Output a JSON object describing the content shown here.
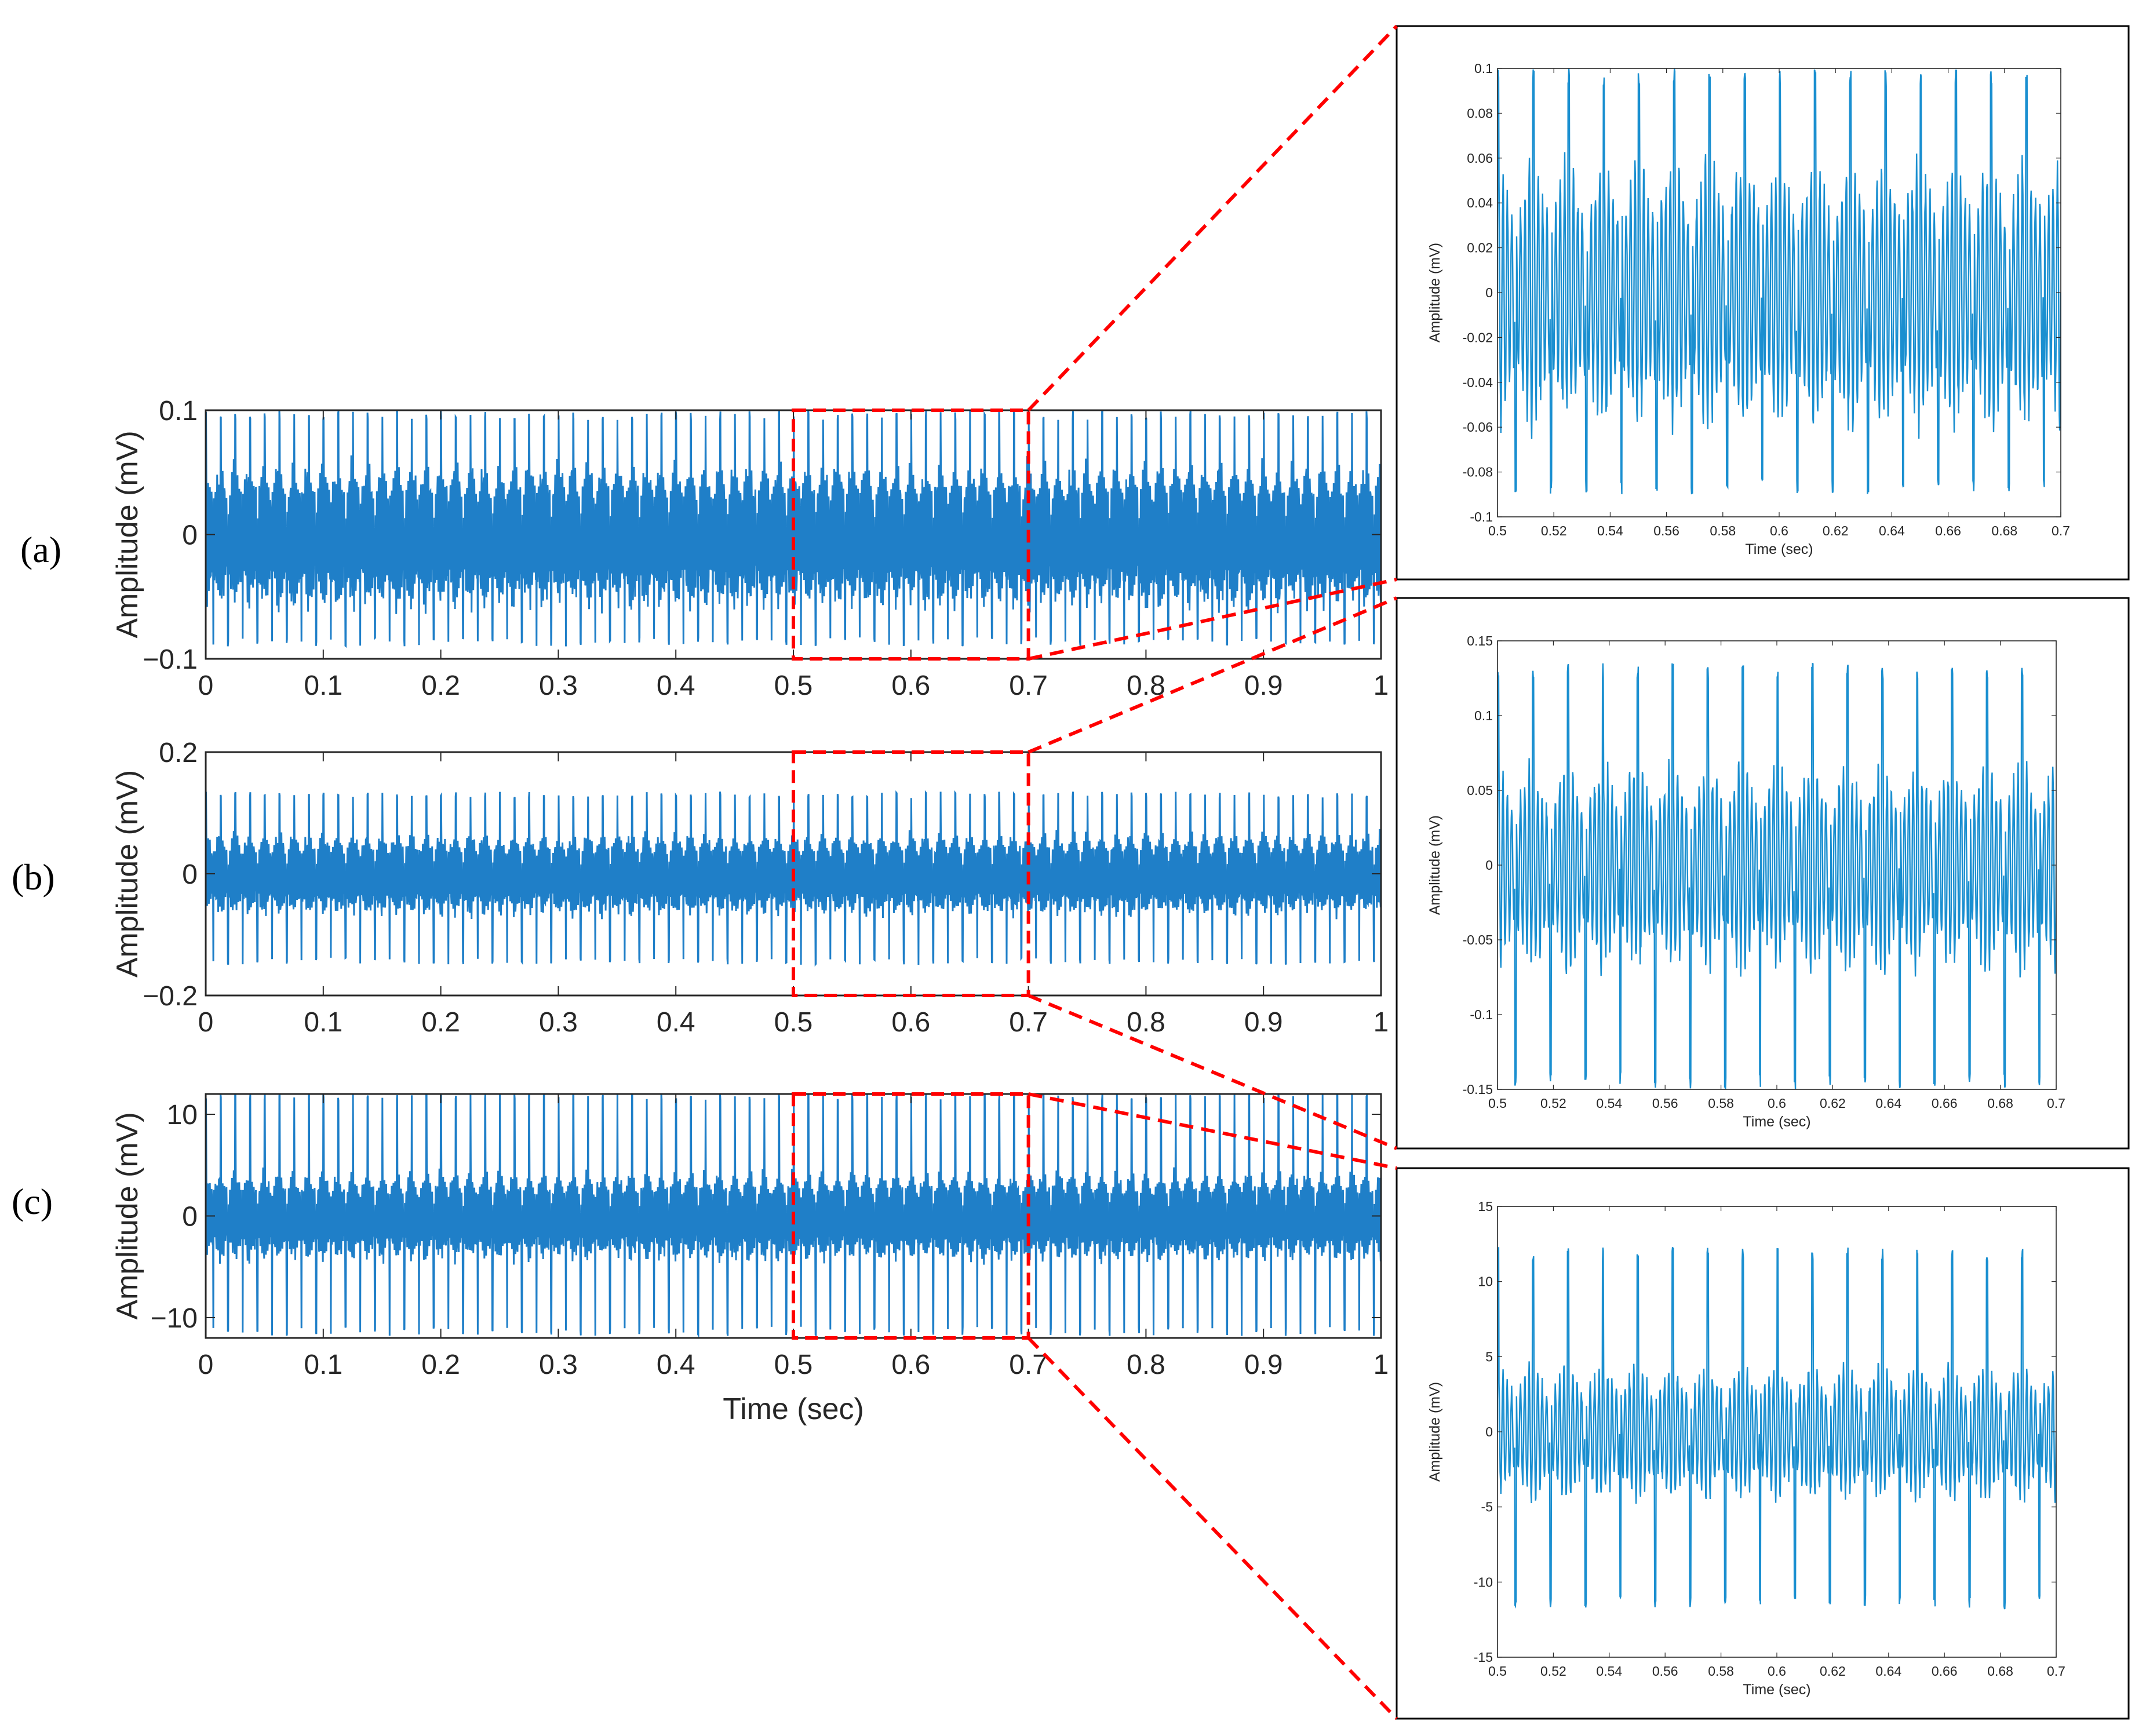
{
  "chart_data": [
    {
      "id": "a",
      "panel_label": "(a)",
      "type": "line",
      "ylabel": "Amplitude (mV)",
      "xlabel": "",
      "xlim": [
        0,
        1
      ],
      "ylim": [
        -0.1,
        0.1
      ],
      "xticks": [
        0,
        0.1,
        0.2,
        0.3,
        0.4,
        0.5,
        0.6,
        0.7,
        0.8,
        0.9,
        1
      ],
      "xtick_labels": [
        "0",
        "0.1",
        "0.2",
        "0.3",
        "0.4",
        "0.5",
        "0.6",
        "0.7",
        "0.8",
        "0.9",
        "1"
      ],
      "yticks": [
        -0.1,
        0,
        0.1
      ],
      "ytick_labels": [
        "−0.1",
        "0",
        "0.1"
      ],
      "series_color": "#1f7fc8",
      "signal": {
        "period_s": 0.0125,
        "peak_max": 0.1,
        "peak_min": -0.09,
        "body_amplitude": 0.06
      },
      "zoom_window": [
        0.5,
        0.7
      ]
    },
    {
      "id": "b",
      "panel_label": "(b)",
      "type": "line",
      "ylabel": "Amplitude (mV)",
      "xlabel": "",
      "xlim": [
        0,
        1
      ],
      "ylim": [
        -0.2,
        0.2
      ],
      "xticks": [
        0,
        0.1,
        0.2,
        0.3,
        0.4,
        0.5,
        0.6,
        0.7,
        0.8,
        0.9,
        1
      ],
      "xtick_labels": [
        "0",
        "0.1",
        "0.2",
        "0.3",
        "0.4",
        "0.5",
        "0.6",
        "0.7",
        "0.8",
        "0.9",
        "1"
      ],
      "yticks": [
        -0.2,
        0,
        0.2
      ],
      "ytick_labels": [
        "−0.2",
        "0",
        "0.2"
      ],
      "series_color": "#1f7fc8",
      "signal": {
        "period_s": 0.0125,
        "peak_max": 0.135,
        "peak_min": -0.15,
        "body_amplitude": 0.07
      },
      "zoom_window": [
        0.5,
        0.7
      ]
    },
    {
      "id": "c",
      "panel_label": "(c)",
      "type": "line",
      "ylabel": "Amplitude (mV)",
      "xlabel": "Time (sec)",
      "xlim": [
        0,
        1
      ],
      "ylim": [
        -12,
        12
      ],
      "xticks": [
        0,
        0.1,
        0.2,
        0.3,
        0.4,
        0.5,
        0.6,
        0.7,
        0.8,
        0.9,
        1
      ],
      "xtick_labels": [
        "0",
        "0.1",
        "0.2",
        "0.3",
        "0.4",
        "0.5",
        "0.6",
        "0.7",
        "0.8",
        "0.9",
        "1"
      ],
      "yticks": [
        -10,
        0,
        10
      ],
      "ytick_labels": [
        "−10",
        "0",
        "10"
      ],
      "series_color": "#1f7fc8",
      "signal": {
        "period_s": 0.0125,
        "peak_max": 12.3,
        "peak_min": -11.8,
        "body_amplitude": 4.5
      },
      "zoom_window": [
        0.5,
        0.7
      ]
    },
    {
      "id": "a-zoom",
      "type": "line",
      "ylabel": "Amplitude (mV)",
      "xlabel": "Time (sec)",
      "xlim": [
        0.5,
        0.7
      ],
      "ylim": [
        -0.1,
        0.1
      ],
      "xticks": [
        0.5,
        0.52,
        0.54,
        0.56,
        0.58,
        0.6,
        0.62,
        0.64,
        0.66,
        0.68,
        0.7
      ],
      "xtick_labels": [
        "0.5",
        "0.52",
        "0.54",
        "0.56",
        "0.58",
        "0.6",
        "0.62",
        "0.64",
        "0.66",
        "0.68",
        "0.7"
      ],
      "yticks": [
        -0.1,
        -0.08,
        -0.06,
        -0.04,
        -0.02,
        0,
        0.02,
        0.04,
        0.06,
        0.08,
        0.1
      ],
      "ytick_labels": [
        "-0.1",
        "-0.08",
        "-0.06",
        "-0.04",
        "-0.02",
        "0",
        "0.02",
        "0.04",
        "0.06",
        "0.08",
        "0.1"
      ],
      "series_color": "#1a8fd0",
      "signal": {
        "period_s": 0.0125,
        "peak_max": 0.1,
        "peak_min": -0.09,
        "body_amplitude": 0.06
      }
    },
    {
      "id": "b-zoom",
      "type": "line",
      "ylabel": "Amplitude (mV)",
      "xlabel": "Time (sec)",
      "xlim": [
        0.5,
        0.7
      ],
      "ylim": [
        -0.15,
        0.15
      ],
      "xticks": [
        0.5,
        0.52,
        0.54,
        0.56,
        0.58,
        0.6,
        0.62,
        0.64,
        0.66,
        0.68,
        0.7
      ],
      "xtick_labels": [
        "0.5",
        "0.52",
        "0.54",
        "0.56",
        "0.58",
        "0.6",
        "0.62",
        "0.64",
        "0.66",
        "0.68",
        "0.7"
      ],
      "yticks": [
        -0.15,
        -0.1,
        -0.05,
        0,
        0.05,
        0.1,
        0.15
      ],
      "ytick_labels": [
        "-0.15",
        "-0.1",
        "-0.05",
        "0",
        "0.05",
        "0.1",
        "0.15"
      ],
      "series_color": "#1a8fd0",
      "signal": {
        "period_s": 0.0125,
        "peak_max": 0.135,
        "peak_min": -0.15,
        "body_amplitude": 0.07
      }
    },
    {
      "id": "c-zoom",
      "type": "line",
      "ylabel": "Amplitude (mV)",
      "xlabel": "Time (sec)",
      "xlim": [
        0.5,
        0.7
      ],
      "ylim": [
        -15,
        15
      ],
      "xticks": [
        0.5,
        0.52,
        0.54,
        0.56,
        0.58,
        0.6,
        0.62,
        0.64,
        0.66,
        0.68,
        0.7
      ],
      "xtick_labels": [
        "0.5",
        "0.52",
        "0.54",
        "0.56",
        "0.58",
        "0.6",
        "0.62",
        "0.64",
        "0.66",
        "0.68",
        "0.7"
      ],
      "yticks": [
        -15,
        -10,
        -5,
        0,
        5,
        10,
        15
      ],
      "ytick_labels": [
        "-15",
        "-10",
        "-5",
        "0",
        "5",
        "10",
        "15"
      ],
      "series_color": "#1a8fd0",
      "signal": {
        "period_s": 0.0125,
        "peak_max": 12.3,
        "peak_min": -11.8,
        "body_amplitude": 4.5
      }
    }
  ],
  "colors": {
    "zoom_highlight": "#ff0000",
    "axis": "#262626",
    "frame": "#000000"
  }
}
